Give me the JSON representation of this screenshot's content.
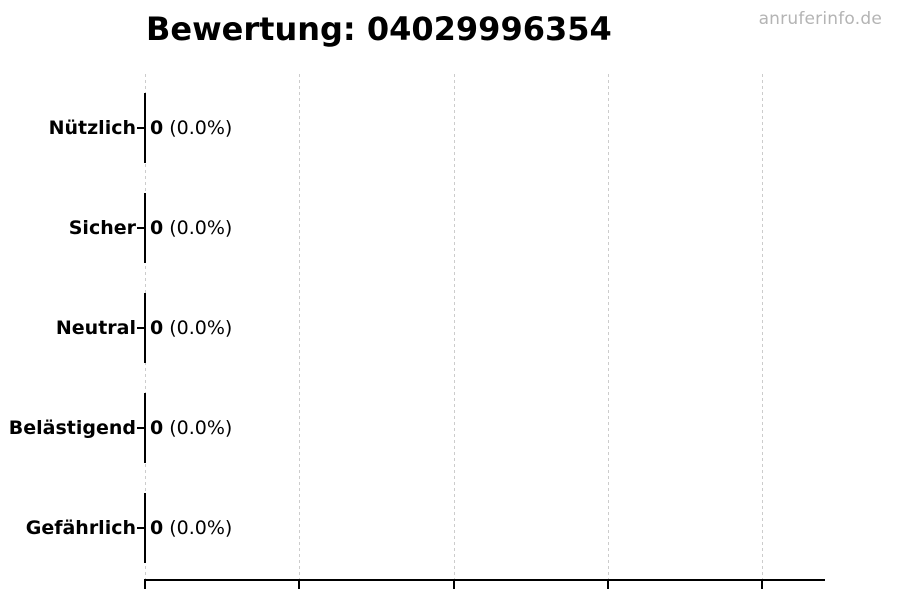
{
  "watermark": "anruferinfo.de",
  "colors": {
    "background": "#ffffff",
    "text": "#000000",
    "gridline": "#cccccc",
    "axis": "#000000",
    "bar_edge": "#000000",
    "watermark": "#b4b4b4"
  },
  "chart_data": {
    "type": "bar",
    "orientation": "horizontal",
    "title": "Bewertung: 04029996354",
    "categories": [
      "Nützlich",
      "Sicher",
      "Neutral",
      "Belästigend",
      "Gefährlich"
    ],
    "values": [
      0,
      0,
      0,
      0,
      0
    ],
    "counts": [
      "0",
      "0",
      "0",
      "0",
      "0"
    ],
    "percent_labels": [
      "(0.0%)",
      "(0.0%)",
      "(0.0%)",
      "(0.0%)",
      "(0.0%)"
    ],
    "value_label_format": "count (percent)",
    "xlim": [
      0,
      1
    ],
    "x_axis": {
      "tick_count": 5,
      "tick_labels_visible": false,
      "gridlines": "dashed",
      "grid_on": true
    },
    "y_axis": {
      "tick_labels_visible": true,
      "left_spine_visible": false
    },
    "legend": false
  }
}
